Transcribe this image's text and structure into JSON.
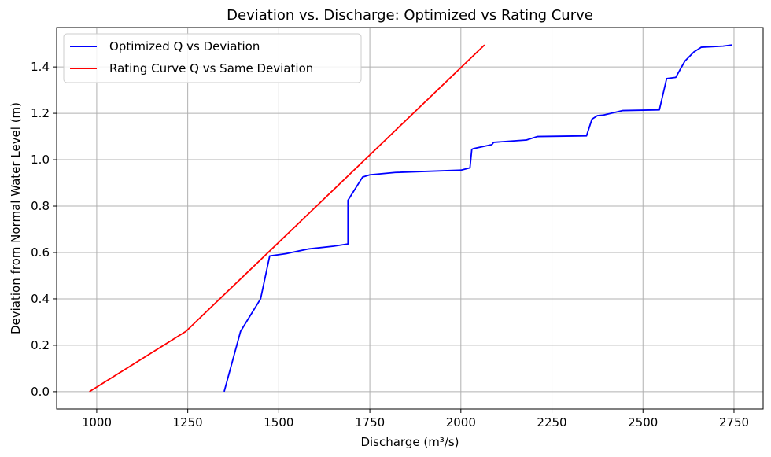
{
  "chart_data": {
    "type": "line",
    "title": "Deviation vs. Discharge: Optimized vs Rating Curve",
    "xlabel": "Discharge (m³/s)",
    "ylabel": "Deviation from Normal Water Level (m)",
    "xlim": [
      890,
      2830
    ],
    "ylim": [
      -0.075,
      1.57
    ],
    "xticks": [
      1000,
      1250,
      1500,
      1750,
      2000,
      2250,
      2500,
      2750
    ],
    "xtick_labels": [
      "1000",
      "1250",
      "1500",
      "1750",
      "2000",
      "2250",
      "2500",
      "2750"
    ],
    "yticks": [
      0.0,
      0.2,
      0.4,
      0.6,
      0.8,
      1.0,
      1.2,
      1.4
    ],
    "ytick_labels": [
      "0.0",
      "0.2",
      "0.4",
      "0.6",
      "0.8",
      "1.0",
      "1.2",
      "1.4"
    ],
    "grid": true,
    "legend_position": "top-left",
    "series": [
      {
        "name": "Optimized Q vs Deviation",
        "color": "#0000ff",
        "x": [
          1350,
          1395,
          1450,
          1475,
          1520,
          1580,
          1650,
          1690,
          1690,
          1730,
          1750,
          1820,
          2000,
          2025,
          2030,
          2035,
          2085,
          2090,
          2180,
          2210,
          2345,
          2360,
          2375,
          2390,
          2445,
          2545,
          2565,
          2590,
          2615,
          2640,
          2660,
          2720,
          2745
        ],
        "y": [
          0.0,
          0.26,
          0.4,
          0.585,
          0.595,
          0.615,
          0.627,
          0.637,
          0.825,
          0.925,
          0.935,
          0.945,
          0.955,
          0.965,
          1.045,
          1.048,
          1.065,
          1.075,
          1.085,
          1.1,
          1.103,
          1.175,
          1.19,
          1.192,
          1.212,
          1.215,
          1.35,
          1.355,
          1.425,
          1.465,
          1.485,
          1.49,
          1.495
        ]
      },
      {
        "name": "Rating Curve Q vs Same Deviation",
        "color": "#ff0000",
        "x": [
          980,
          1245,
          2065
        ],
        "y": [
          0.0,
          0.26,
          1.495
        ]
      }
    ]
  }
}
